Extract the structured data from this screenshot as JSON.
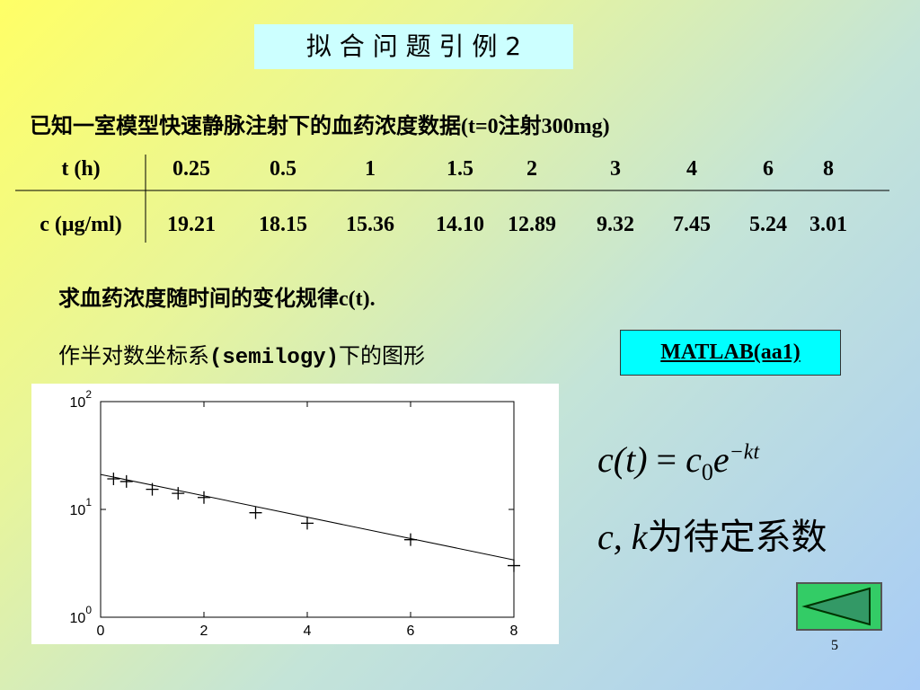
{
  "title": "拟 合 问 题 引 例 2",
  "intro": "已知一室模型快速静脉注射下的血药浓度数据(t=0注射300mg)",
  "table": {
    "row_labels": [
      "t (h)",
      "c (μg/ml)"
    ],
    "rows": [
      [
        "0.25",
        "0.5",
        "1",
        "1.5",
        "2",
        "3",
        "4",
        "6",
        "8"
      ],
      [
        "19.21",
        "18.15",
        "15.36",
        "14.10",
        "12.89",
        "9.32",
        "7.45",
        "5.24",
        "3.01"
      ]
    ]
  },
  "question": "求血药浓度随时间的变化规律c(t).",
  "plot_text": {
    "before": "作半对数坐标系",
    "code": "(semilogy)",
    "after": "下的图形"
  },
  "button": "MATLAB(aa1)",
  "formula": {
    "lhs": "c(t)",
    "eq": "=",
    "rhs": "c",
    "sub": "0",
    "base": "e",
    "exp": "−kt"
  },
  "note": {
    "vars": "c, k",
    "text": "为待定系数"
  },
  "page_number": "5",
  "chart_data": {
    "type": "scatter",
    "x": [
      0.25,
      0.5,
      1,
      1.5,
      2,
      3,
      4,
      6,
      8
    ],
    "series": [
      {
        "values": [
          19.21,
          18.15,
          15.36,
          14.1,
          12.89,
          9.32,
          7.45,
          5.24,
          3.01
        ],
        "color": "#000000",
        "marker": "+"
      }
    ],
    "fit": {
      "x": [
        0,
        8
      ],
      "values": [
        21.1,
        3.4
      ],
      "color": "#000000"
    },
    "xlim": [
      0,
      8
    ],
    "xticks": [
      0,
      2,
      4,
      6,
      8
    ],
    "ylim": [
      1,
      100
    ],
    "log_y": true,
    "yticks": [
      {
        "value": 1,
        "label": "10",
        "power": "0"
      },
      {
        "value": 10,
        "label": "10",
        "power": "1"
      },
      {
        "value": 100,
        "label": "10",
        "power": "2"
      }
    ]
  }
}
